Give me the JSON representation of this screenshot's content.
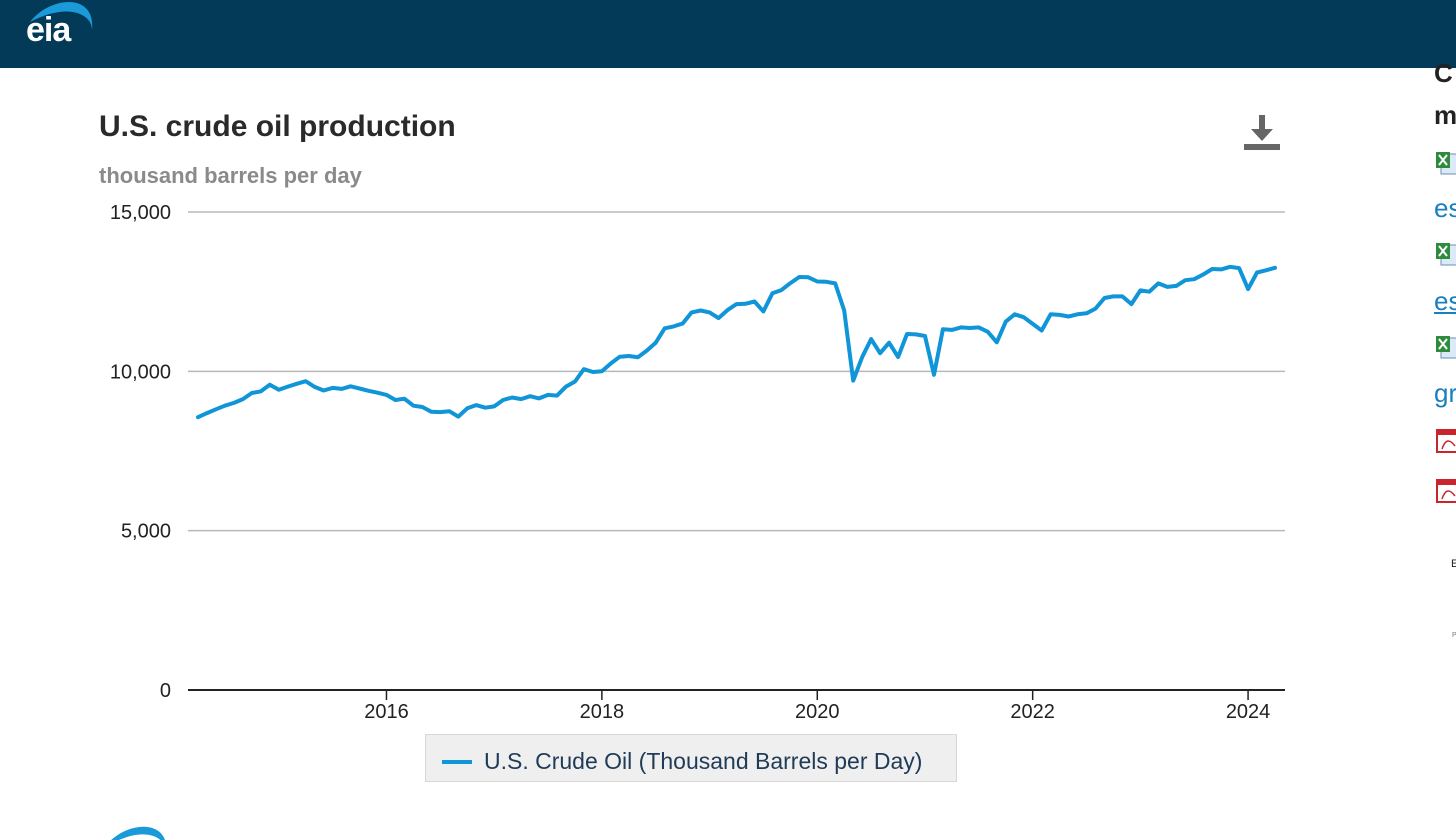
{
  "header": {
    "logo_text": "eia",
    "bg_color": "#033a58"
  },
  "chart_panel": {
    "title": "U.S. crude oil production",
    "subtitle": "thousand barrels per day",
    "download_icon": "download-icon"
  },
  "legend": {
    "label": "U.S. Crude Oil (Thousand Barrels per Day)",
    "color": "#0f95d8"
  },
  "sidebar": {
    "heading_1": "C",
    "heading_2": "m",
    "links": [
      "es",
      "es",
      "gr"
    ],
    "small_text": "E",
    "tiny_text": "P",
    "icons": [
      "excel-icon",
      "excel-icon",
      "excel-icon",
      "pdf-icon",
      "pdf-icon"
    ]
  },
  "chart_data": {
    "type": "line",
    "title": "U.S. crude oil production",
    "subtitle": "thousand barrels per day",
    "xlabel": "",
    "ylabel": "",
    "xlim": [
      "2014-04",
      "2024-04"
    ],
    "ylim": [
      0,
      15000
    ],
    "yticks": [
      0,
      5000,
      10000,
      15000
    ],
    "ytick_labels": [
      "0",
      "5,000",
      "10,000",
      "15,000"
    ],
    "xticks": [
      "2016",
      "2018",
      "2020",
      "2022",
      "2024"
    ],
    "grid": "horizontal",
    "legend_position": "bottom-center",
    "series": [
      {
        "name": "U.S. Crude Oil (Thousand Barrels per Day)",
        "color": "#0f95d8",
        "x": [
          "2014-04",
          "2014-05",
          "2014-06",
          "2014-07",
          "2014-08",
          "2014-09",
          "2014-10",
          "2014-11",
          "2014-12",
          "2015-01",
          "2015-02",
          "2015-03",
          "2015-04",
          "2015-05",
          "2015-06",
          "2015-07",
          "2015-08",
          "2015-09",
          "2015-10",
          "2015-11",
          "2015-12",
          "2016-01",
          "2016-02",
          "2016-03",
          "2016-04",
          "2016-05",
          "2016-06",
          "2016-07",
          "2016-08",
          "2016-09",
          "2016-10",
          "2016-11",
          "2016-12",
          "2017-01",
          "2017-02",
          "2017-03",
          "2017-04",
          "2017-05",
          "2017-06",
          "2017-07",
          "2017-08",
          "2017-09",
          "2017-10",
          "2017-11",
          "2017-12",
          "2018-01",
          "2018-02",
          "2018-03",
          "2018-04",
          "2018-05",
          "2018-06",
          "2018-07",
          "2018-08",
          "2018-09",
          "2018-10",
          "2018-11",
          "2018-12",
          "2019-01",
          "2019-02",
          "2019-03",
          "2019-04",
          "2019-05",
          "2019-06",
          "2019-07",
          "2019-08",
          "2019-09",
          "2019-10",
          "2019-11",
          "2019-12",
          "2020-01",
          "2020-02",
          "2020-03",
          "2020-04",
          "2020-05",
          "2020-06",
          "2020-07",
          "2020-08",
          "2020-09",
          "2020-10",
          "2020-11",
          "2020-12",
          "2021-01",
          "2021-02",
          "2021-03",
          "2021-04",
          "2021-05",
          "2021-06",
          "2021-07",
          "2021-08",
          "2021-09",
          "2021-10",
          "2021-11",
          "2021-12",
          "2022-01",
          "2022-02",
          "2022-03",
          "2022-04",
          "2022-05",
          "2022-06",
          "2022-07",
          "2022-08",
          "2022-09",
          "2022-10",
          "2022-11",
          "2022-12",
          "2023-01",
          "2023-02",
          "2023-03",
          "2023-04",
          "2023-05",
          "2023-06",
          "2023-07",
          "2023-08",
          "2023-09",
          "2023-10",
          "2023-11",
          "2023-12",
          "2024-01",
          "2024-02",
          "2024-03",
          "2024-04"
        ],
        "values": [
          8560,
          8690,
          8810,
          8920,
          9010,
          9130,
          9320,
          9370,
          9580,
          9420,
          9520,
          9610,
          9690,
          9510,
          9400,
          9480,
          9450,
          9530,
          9460,
          9390,
          9330,
          9260,
          9100,
          9140,
          8920,
          8880,
          8730,
          8720,
          8750,
          8580,
          8840,
          8940,
          8860,
          8900,
          9100,
          9180,
          9130,
          9220,
          9150,
          9260,
          9240,
          9520,
          9680,
          10070,
          9980,
          10000,
          10250,
          10460,
          10480,
          10440,
          10650,
          10900,
          11350,
          11410,
          11500,
          11850,
          11910,
          11850,
          11670,
          11920,
          12110,
          12120,
          12190,
          11880,
          12450,
          12550,
          12770,
          12960,
          12950,
          12820,
          12810,
          12760,
          11910,
          9710,
          10440,
          11010,
          10570,
          10900,
          10450,
          11170,
          11160,
          11110,
          9890,
          11320,
          11300,
          11380,
          11360,
          11380,
          11240,
          10910,
          11560,
          11790,
          11700,
          11490,
          11280,
          11790,
          11770,
          11720,
          11790,
          11820,
          11970,
          12300,
          12350,
          12350,
          12110,
          12540,
          12500,
          12760,
          12650,
          12680,
          12860,
          12890,
          13040,
          13210,
          13200,
          13280,
          13240,
          12580,
          13100,
          13170,
          13250
        ]
      }
    ]
  }
}
